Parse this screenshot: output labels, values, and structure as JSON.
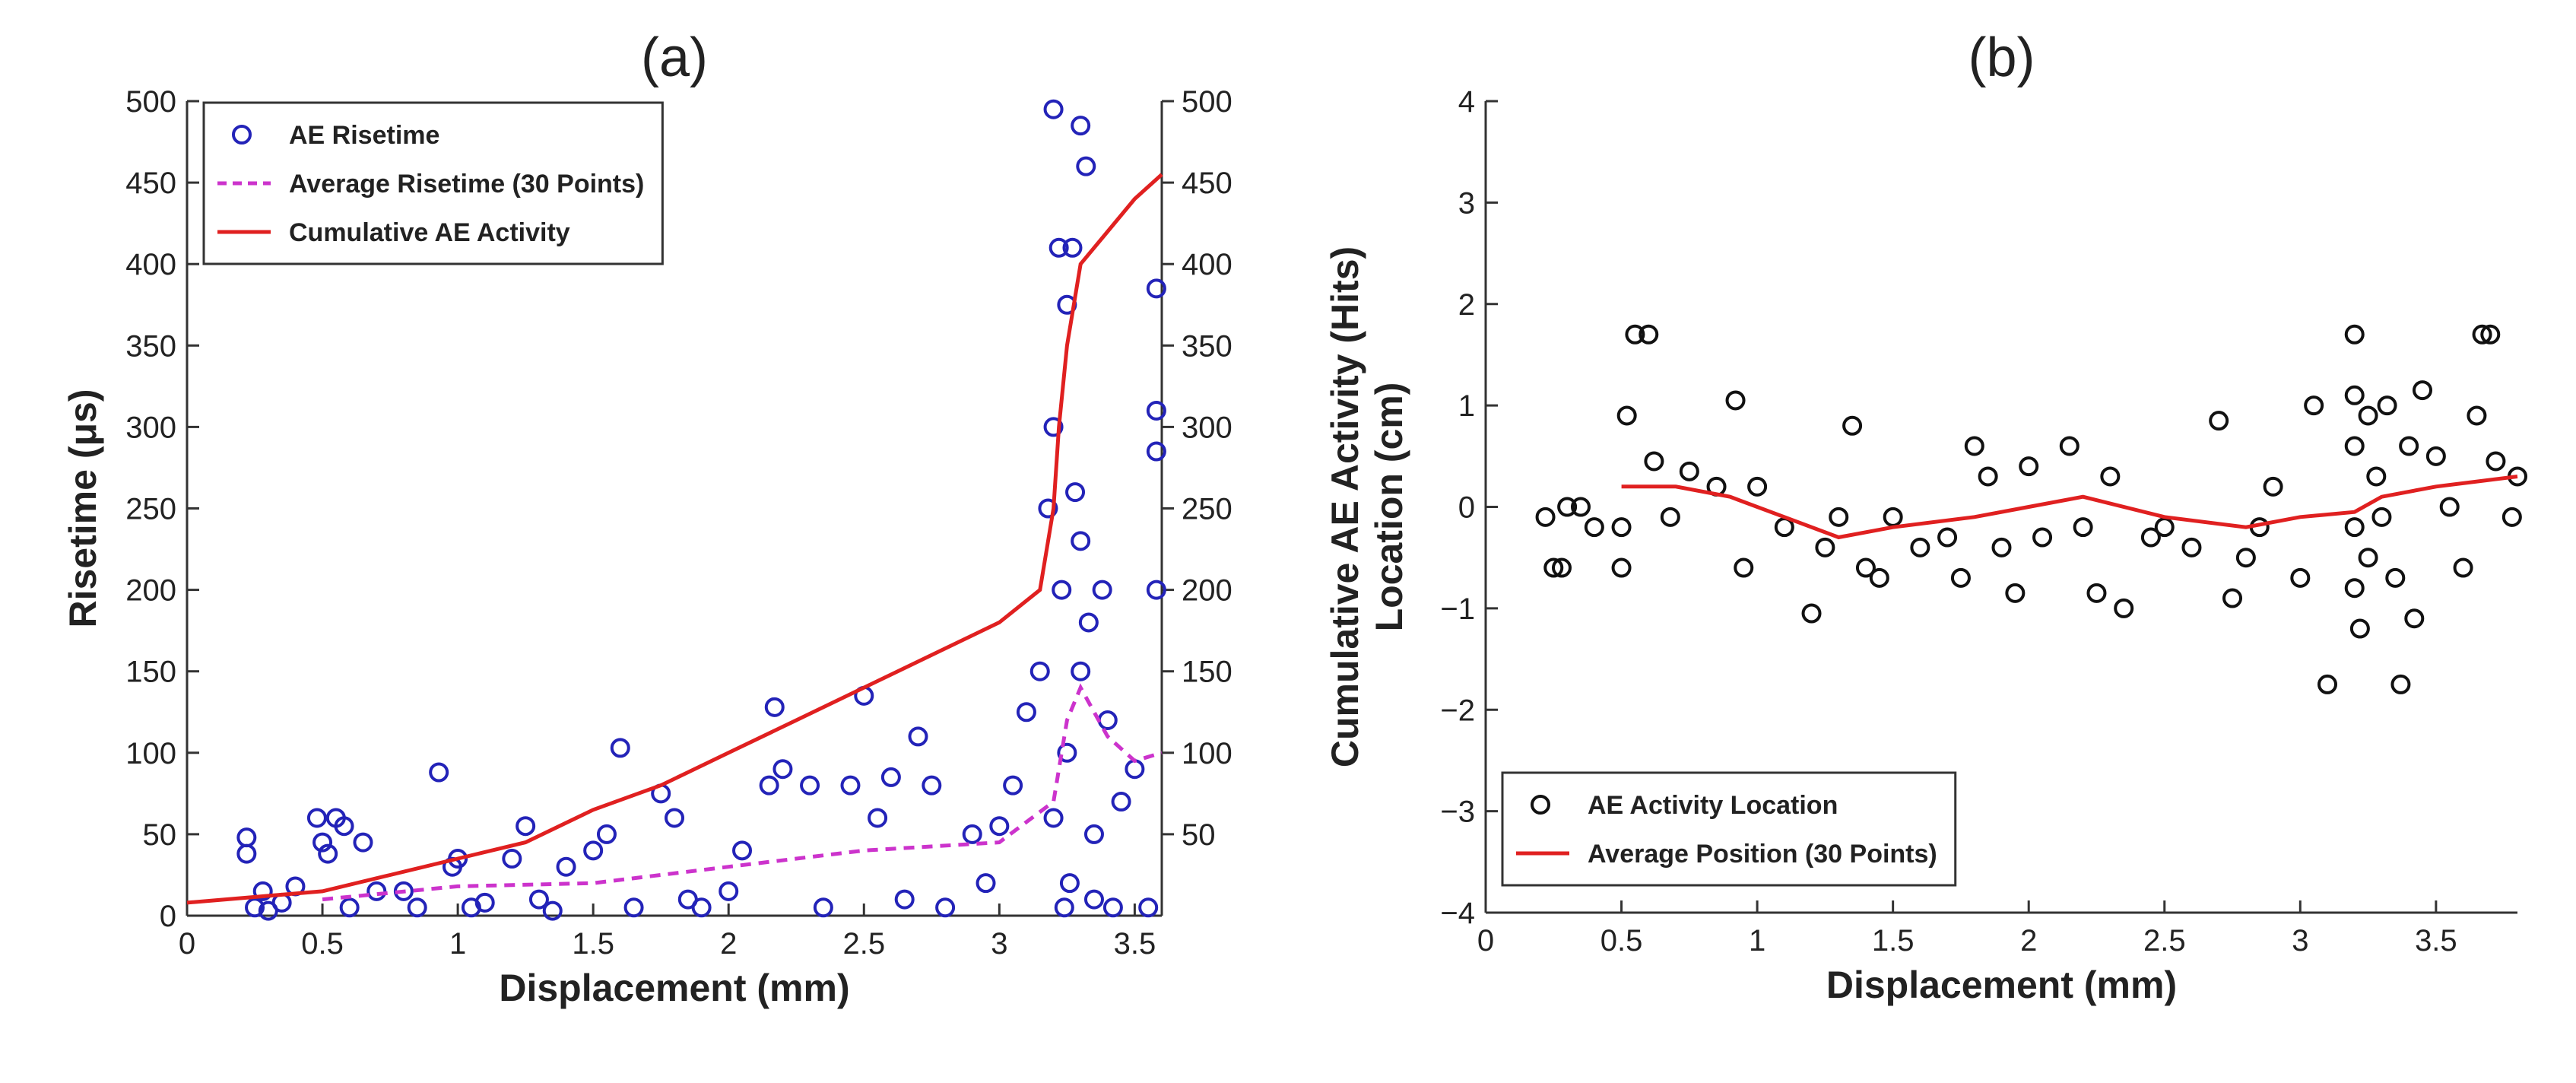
{
  "chart_data": [
    {
      "type": "scatter",
      "title": "(a)",
      "xlabel": "Displacement (mm)",
      "ylabel": "Risetime (μs)",
      "xlim": [
        0,
        3.6
      ],
      "xticks": [
        0,
        0.5,
        1,
        1.5,
        2,
        2.5,
        3,
        3.5
      ],
      "ylim": [
        0,
        500
      ],
      "yticks": [
        0,
        50,
        100,
        150,
        200,
        250,
        300,
        350,
        400,
        450,
        500
      ],
      "y2lim": [
        0,
        500
      ],
      "y2ticks": [
        50,
        100,
        150,
        200,
        250,
        300,
        350,
        400,
        450,
        500
      ],
      "legend": "upper left",
      "series": [
        {
          "name": "AE Risetime",
          "color": "#2323b8",
          "style": "marker",
          "x": [
            0.22,
            0.22,
            0.25,
            0.28,
            0.3,
            0.35,
            0.4,
            0.48,
            0.5,
            0.52,
            0.55,
            0.58,
            0.6,
            0.65,
            0.7,
            0.8,
            0.85,
            0.93,
            0.98,
            1.0,
            1.05,
            1.1,
            1.2,
            1.25,
            1.3,
            1.35,
            1.4,
            1.5,
            1.55,
            1.6,
            1.65,
            1.75,
            1.8,
            1.85,
            1.9,
            2.0,
            2.05,
            2.15,
            2.17,
            2.2,
            2.3,
            2.35,
            2.45,
            2.5,
            2.55,
            2.6,
            2.65,
            2.7,
            2.75,
            2.8,
            2.9,
            2.95,
            3.0,
            3.05,
            3.1,
            3.15,
            3.18,
            3.2,
            3.2,
            3.22,
            3.23,
            3.24,
            3.25,
            3.25,
            3.27,
            3.28,
            3.3,
            3.3,
            3.32,
            3.33,
            3.35,
            3.35,
            3.38,
            3.4,
            3.42,
            3.45,
            3.5,
            3.58,
            3.58,
            3.58,
            3.58,
            3.55,
            3.3,
            3.2,
            3.26
          ],
          "values": [
            48,
            38,
            5,
            15,
            3,
            8,
            18,
            60,
            45,
            38,
            60,
            55,
            5,
            45,
            15,
            15,
            5,
            88,
            30,
            35,
            5,
            8,
            35,
            55,
            10,
            3,
            30,
            40,
            50,
            103,
            5,
            75,
            60,
            10,
            5,
            15,
            40,
            80,
            128,
            90,
            80,
            5,
            80,
            135,
            60,
            85,
            10,
            110,
            80,
            5,
            50,
            20,
            55,
            80,
            125,
            150,
            250,
            495,
            300,
            410,
            200,
            5,
            375,
            100,
            410,
            260,
            485,
            230,
            460,
            180,
            50,
            10,
            200,
            120,
            5,
            70,
            90,
            385,
            310,
            285,
            200,
            5,
            150,
            60,
            20
          ]
        },
        {
          "name": "Average Risetime (30 Points)",
          "color": "#cc33cc",
          "style": "dashed",
          "x": [
            0.5,
            1,
            1.5,
            2,
            2.5,
            3,
            3.2,
            3.25,
            3.3,
            3.4,
            3.5,
            3.6
          ],
          "values": [
            10,
            18,
            20,
            30,
            40,
            45,
            70,
            120,
            140,
            110,
            95,
            100
          ]
        },
        {
          "name": "Cumulative AE Activity",
          "color": "#e02020",
          "style": "solid",
          "axis": "y2",
          "x": [
            0,
            0.5,
            0.75,
            1,
            1.25,
            1.5,
            1.75,
            2,
            2.25,
            2.5,
            2.75,
            3,
            3.15,
            3.2,
            3.22,
            3.25,
            3.3,
            3.4,
            3.5,
            3.6
          ],
          "values": [
            8,
            15,
            25,
            35,
            45,
            65,
            80,
            100,
            120,
            140,
            160,
            180,
            200,
            250,
            300,
            350,
            400,
            420,
            440,
            455
          ]
        }
      ]
    },
    {
      "type": "scatter",
      "title": "(b)",
      "xlabel": "Displacement (mm)",
      "ylabel": [
        "Cumulative AE Activity (Hits)",
        "Location (cm)"
      ],
      "xlim": [
        0,
        3.8
      ],
      "xticks": [
        0,
        0.5,
        1,
        1.5,
        2,
        2.5,
        3,
        3.5
      ],
      "ylim": [
        -4,
        4
      ],
      "yticks": [
        {
          "value": -4,
          "label": "−4"
        },
        {
          "value": -3,
          "label": "−3"
        },
        {
          "value": -2,
          "label": "−2"
        },
        {
          "value": -1,
          "label": "−1"
        },
        0,
        1,
        2,
        3,
        4
      ],
      "legend": "lower left",
      "series": [
        {
          "name": "AE Activity Location",
          "color": "#111111",
          "style": "marker",
          "x": [
            0.22,
            0.25,
            0.28,
            0.3,
            0.35,
            0.4,
            0.5,
            0.5,
            0.52,
            0.55,
            0.6,
            0.62,
            0.68,
            0.75,
            0.85,
            0.92,
            0.95,
            1.0,
            1.1,
            1.2,
            1.25,
            1.3,
            1.35,
            1.4,
            1.45,
            1.5,
            1.6,
            1.7,
            1.75,
            1.8,
            1.85,
            1.9,
            1.95,
            2.0,
            2.05,
            2.15,
            2.2,
            2.25,
            2.3,
            2.35,
            2.45,
            2.5,
            2.6,
            2.7,
            2.75,
            2.8,
            2.85,
            2.9,
            3.0,
            3.05,
            3.1,
            3.2,
            3.2,
            3.2,
            3.2,
            3.2,
            3.22,
            3.25,
            3.25,
            3.28,
            3.3,
            3.32,
            3.35,
            3.37,
            3.4,
            3.42,
            3.45,
            3.5,
            3.55,
            3.6,
            3.65,
            3.67,
            3.7,
            3.72,
            3.78,
            3.8
          ],
          "values": [
            -0.1,
            -0.6,
            -0.6,
            0,
            0,
            -0.2,
            -0.2,
            -0.6,
            0.9,
            1.7,
            1.7,
            0.45,
            -0.1,
            0.35,
            0.2,
            1.05,
            -0.6,
            0.2,
            -0.2,
            -1.05,
            -0.4,
            -0.1,
            0.8,
            -0.6,
            -0.7,
            -0.1,
            -0.4,
            -0.3,
            -0.7,
            0.6,
            0.3,
            -0.4,
            -0.85,
            0.4,
            -0.3,
            0.6,
            -0.2,
            -0.85,
            0.3,
            -1.0,
            -0.3,
            -0.2,
            -0.4,
            0.85,
            -0.9,
            -0.5,
            -0.2,
            0.2,
            -0.7,
            1.0,
            -1.75,
            1.7,
            1.1,
            0.6,
            -0.2,
            -0.8,
            -1.2,
            0.9,
            -0.5,
            0.3,
            -0.1,
            1.0,
            -0.7,
            -1.75,
            0.6,
            -1.1,
            1.15,
            0.5,
            0,
            -0.6,
            0.9,
            1.7,
            1.7,
            0.45,
            -0.1,
            0.3
          ]
        },
        {
          "name": "Average Position (30 Points)",
          "color": "#e02020",
          "style": "solid",
          "x": [
            0.5,
            0.7,
            0.9,
            1.1,
            1.3,
            1.5,
            1.8,
            2,
            2.2,
            2.5,
            2.8,
            3,
            3.2,
            3.3,
            3.5,
            3.8
          ],
          "values": [
            0.2,
            0.2,
            0.1,
            -0.1,
            -0.3,
            -0.2,
            -0.1,
            0,
            0.1,
            -0.1,
            -0.2,
            -0.1,
            -0.05,
            0.1,
            0.2,
            0.3
          ]
        }
      ]
    }
  ]
}
